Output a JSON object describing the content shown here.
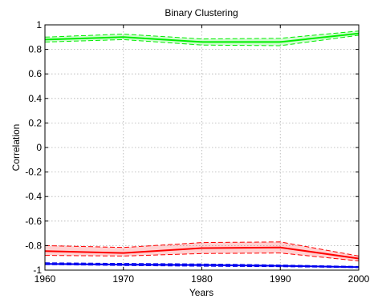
{
  "chart_data": {
    "type": "line",
    "title": "Binary Clustering",
    "xlabel": "Years",
    "ylabel": "Correlation",
    "xlim": [
      1960,
      2000
    ],
    "ylim": [
      -1,
      1
    ],
    "x_ticks": [
      1960,
      1970,
      1980,
      1990,
      2000
    ],
    "y_ticks": [
      -1,
      -0.8,
      -0.6,
      -0.4,
      -0.2,
      0,
      0.2,
      0.4,
      0.6,
      0.8,
      1
    ],
    "y_tick_labels": [
      "-1",
      "-0.8",
      "-0.6",
      "-0.4",
      "-0.2",
      "0",
      "0.2",
      "0.4",
      "0.6",
      "0.8",
      "1"
    ],
    "grid": true,
    "x": [
      1960,
      1970,
      1980,
      1990,
      2000
    ],
    "series": [
      {
        "color": "#00ee00",
        "values": [
          0.88,
          0.9,
          0.86,
          0.86,
          0.93
        ],
        "upper": [
          0.9,
          0.925,
          0.885,
          0.89,
          0.95
        ],
        "lower": [
          0.86,
          0.88,
          0.835,
          0.83,
          0.915
        ]
      },
      {
        "color": "#ff0000",
        "values": [
          -0.845,
          -0.86,
          -0.82,
          -0.815,
          -0.905
        ],
        "upper": [
          -0.8,
          -0.815,
          -0.775,
          -0.77,
          -0.885
        ],
        "lower": [
          -0.88,
          -0.885,
          -0.865,
          -0.86,
          -0.925
        ]
      },
      {
        "color": "#0000ee",
        "values": [
          -0.95,
          -0.955,
          -0.958,
          -0.965,
          -0.975
        ],
        "upper": [
          -0.94,
          -0.945,
          -0.95,
          -0.958,
          -0.97
        ],
        "lower": [
          -0.955,
          -0.962,
          -0.968,
          -0.972,
          -0.98
        ]
      }
    ]
  }
}
